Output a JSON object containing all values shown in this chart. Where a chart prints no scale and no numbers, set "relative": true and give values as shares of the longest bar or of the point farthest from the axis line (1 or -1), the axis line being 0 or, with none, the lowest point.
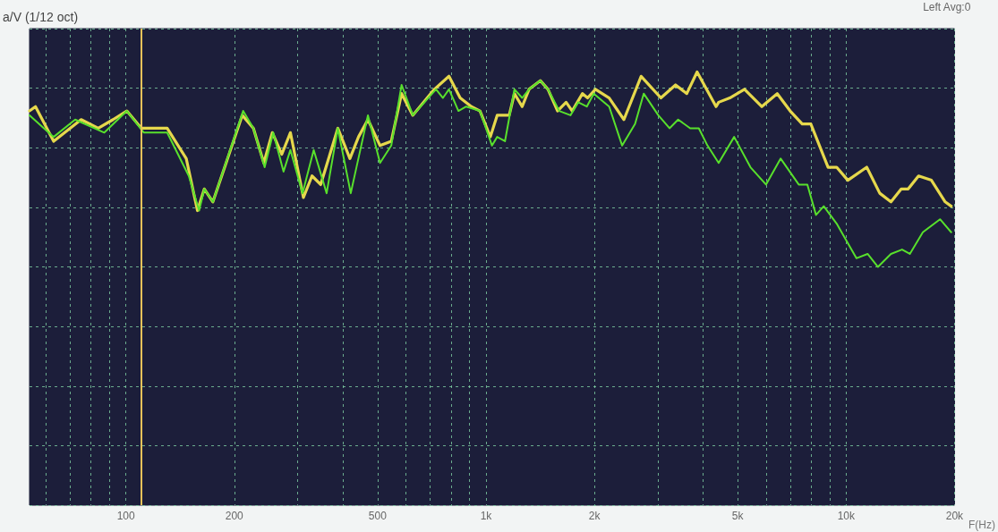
{
  "chart_data": {
    "type": "line",
    "relative": true,
    "ylabel": "a/V (1/12 oct)",
    "xlabel": "F(Hz)",
    "annotations": [
      "Left Avg:0"
    ],
    "log": "x",
    "xlim": [
      54,
      20000
    ],
    "xticks": [
      {
        "value": 60,
        "label": null
      },
      {
        "value": 70,
        "label": null
      },
      {
        "value": 80,
        "label": null
      },
      {
        "value": 90,
        "label": null
      },
      {
        "value": 100,
        "label": "100"
      },
      {
        "value": 200,
        "label": "200"
      },
      {
        "value": 300,
        "label": null
      },
      {
        "value": 400,
        "label": null
      },
      {
        "value": 500,
        "label": "500"
      },
      {
        "value": 600,
        "label": null
      },
      {
        "value": 700,
        "label": null
      },
      {
        "value": 800,
        "label": null
      },
      {
        "value": 900,
        "label": null
      },
      {
        "value": 1000,
        "label": "1k"
      },
      {
        "value": 2000,
        "label": "2k"
      },
      {
        "value": 3000,
        "label": null
      },
      {
        "value": 4000,
        "label": null
      },
      {
        "value": 5000,
        "label": "5k"
      },
      {
        "value": 6000,
        "label": null
      },
      {
        "value": 7000,
        "label": null
      },
      {
        "value": 8000,
        "label": null
      },
      {
        "value": 9000,
        "label": null
      },
      {
        "value": 10000,
        "label": "10k"
      },
      {
        "value": 20000,
        "label": "20k"
      }
    ],
    "grid": true,
    "marker": "none",
    "line_style": "solid",
    "ref_lines": [
      {
        "axis": "x",
        "value": 110,
        "color": "#e8c25a"
      }
    ],
    "series": [
      {
        "color": "#e6d84c",
        "x": [
          54,
          56.1,
          63,
          75.1,
          83.8,
          92.1,
          100.6,
          110.4,
          130.2,
          147.1,
          158,
          165.1,
          174.4,
          210.4,
          226,
          241.5,
          255.1,
          271,
          286.3,
          311.1,
          328.7,
          347.4,
          387.7,
          418.8,
          442.5,
          470,
          507.8,
          545.6,
          582.9,
          626.1,
          718.7,
          789.1,
          847.7,
          910.7,
          962.2,
          1028,
          1074,
          1160,
          1199,
          1260,
          1317,
          1415,
          1486,
          1580,
          1669,
          1735,
          1853,
          1915,
          2013,
          2198,
          2415,
          2696,
          3059,
          3360,
          3610,
          3856,
          4354,
          4426,
          4753,
          5221,
          5830,
          6437,
          6990,
          7551,
          7979,
          8910,
          9412,
          10110,
          11410,
          12400,
          13320,
          14230,
          14870,
          15890,
          17250,
          18840,
          19580
        ],
        "values": [
          0.91,
          0.92,
          0.84,
          0.89,
          0.87,
          0.89,
          0.91,
          0.87,
          0.87,
          0.8,
          0.68,
          0.73,
          0.7,
          0.9,
          0.87,
          0.79,
          0.86,
          0.81,
          0.86,
          0.71,
          0.76,
          0.74,
          0.87,
          0.8,
          0.85,
          0.89,
          0.83,
          0.84,
          0.95,
          0.9,
          0.96,
          0.99,
          0.94,
          0.92,
          0.91,
          0.85,
          0.9,
          0.9,
          0.95,
          0.92,
          0.96,
          0.98,
          0.96,
          0.91,
          0.93,
          0.91,
          0.95,
          0.94,
          0.96,
          0.94,
          0.89,
          0.99,
          0.94,
          0.97,
          0.95,
          1,
          0.92,
          0.93,
          0.94,
          0.96,
          0.92,
          0.95,
          0.91,
          0.88,
          0.88,
          0.78,
          0.78,
          0.75,
          0.78,
          0.72,
          0.7,
          0.73,
          0.73,
          0.76,
          0.75,
          0.7,
          0.69
        ]
      },
      {
        "color": "#58e02c",
        "x": [
          54,
          63,
          72.3,
          87.1,
          100.6,
          112.2,
          130.2,
          149.5,
          159.7,
          165.1,
          174.4,
          211.6,
          226,
          242.8,
          256.5,
          274,
          286.3,
          309.4,
          332.3,
          360.9,
          387.7,
          421.1,
          470,
          507.8,
          545.6,
          582.9,
          626.1,
          726.5,
          759.3,
          789.1,
          838.3,
          881,
          962.2,
          1039,
          1074,
          1129,
          1199,
          1260,
          1317,
          1415,
          1486,
          1597,
          1716,
          1803,
          1905,
          1991,
          2198,
          2388,
          2594,
          2741,
          3009,
          3233,
          3416,
          3690,
          3899,
          4121,
          4426,
          4887,
          5425,
          5991,
          6580,
          7386,
          7805,
          8248,
          8667,
          9412,
          10680,
          11470,
          12260,
          13320,
          14300,
          15030,
          16330,
          18230,
          19580
        ],
        "values": [
          0.9,
          0.85,
          0.89,
          0.86,
          0.91,
          0.86,
          0.86,
          0.76,
          0.68,
          0.73,
          0.7,
          0.91,
          0.87,
          0.78,
          0.86,
          0.77,
          0.82,
          0.72,
          0.82,
          0.72,
          0.87,
          0.72,
          0.9,
          0.79,
          0.83,
          0.97,
          0.9,
          0.96,
          0.94,
          0.96,
          0.91,
          0.92,
          0.91,
          0.83,
          0.85,
          0.84,
          0.96,
          0.94,
          0.96,
          0.98,
          0.96,
          0.91,
          0.9,
          0.93,
          0.92,
          0.95,
          0.92,
          0.83,
          0.88,
          0.95,
          0.9,
          0.87,
          0.89,
          0.87,
          0.87,
          0.83,
          0.79,
          0.85,
          0.78,
          0.74,
          0.8,
          0.74,
          0.74,
          0.67,
          0.69,
          0.65,
          0.57,
          0.58,
          0.55,
          0.58,
          0.59,
          0.58,
          0.63,
          0.66,
          0.63
        ]
      }
    ]
  }
}
